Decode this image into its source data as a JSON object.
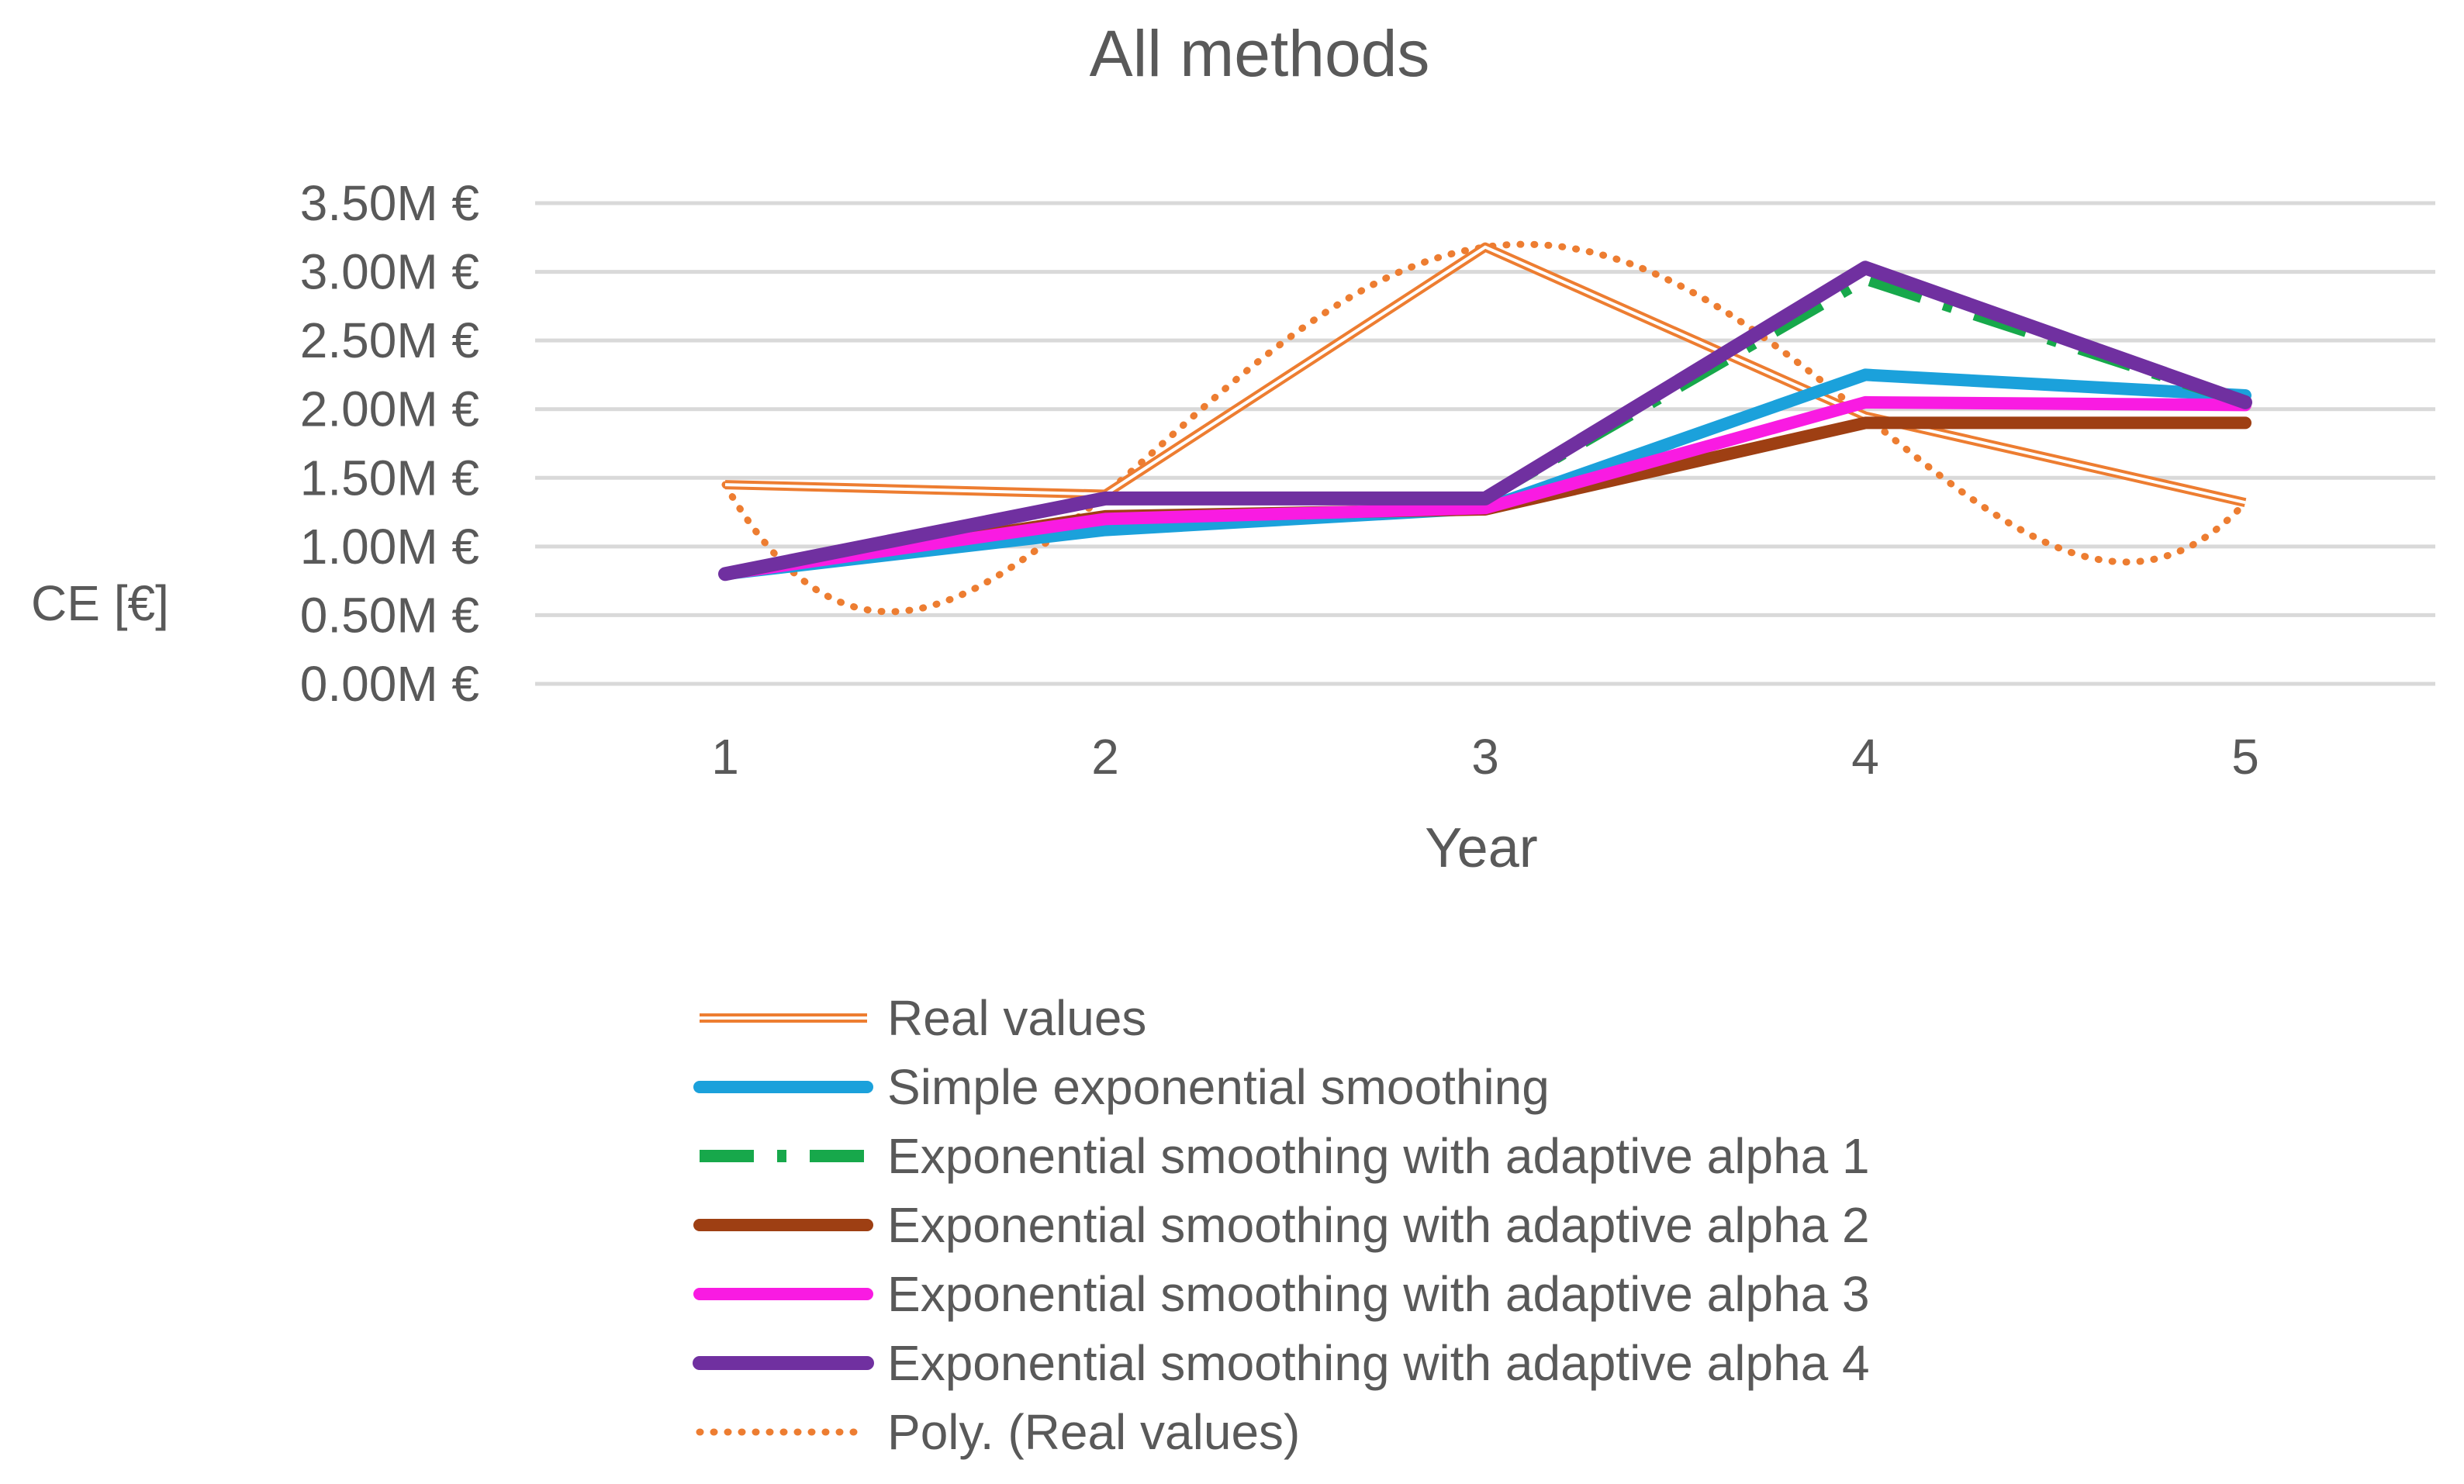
{
  "chart_data": {
    "type": "line",
    "title": "All methods",
    "xlabel": "Year",
    "ylabel": "CE [€]",
    "x": [
      1,
      2,
      3,
      4,
      5
    ],
    "ylim": [
      0,
      3.5
    ],
    "yticks": [
      0,
      0.5,
      1.0,
      1.5,
      2.0,
      2.5,
      3.0,
      3.5
    ],
    "ytick_labels": [
      "0.00M €",
      "0.50M €",
      "1.00M €",
      "1.50M €",
      "2.00M €",
      "2.50M €",
      "3.00M €",
      "3.50M €"
    ],
    "grid": true,
    "legend_position": "bottom",
    "series": [
      {
        "name": "Real values",
        "style": "double",
        "color": "#ED7D31",
        "values": [
          1.45,
          1.38,
          3.18,
          1.95,
          1.32
        ]
      },
      {
        "name": "Simple exponential smoothing",
        "style": "solid",
        "color": "#1BA1DB",
        "values": [
          0.8,
          1.12,
          1.28,
          2.25,
          2.1
        ]
      },
      {
        "name": "Exponential smoothing with adaptive alpha 1",
        "style": "dash",
        "color": "#17A84B",
        "values": [
          0.8,
          1.35,
          1.35,
          2.95,
          2.05
        ]
      },
      {
        "name": "Exponential smoothing with adaptive alpha 2",
        "style": "solid",
        "color": "#9E3F13",
        "values": [
          0.8,
          1.22,
          1.27,
          1.9,
          1.9
        ]
      },
      {
        "name": "Exponential smoothing with adaptive alpha 3",
        "style": "solid",
        "color": "#F91BE2",
        "values": [
          0.8,
          1.2,
          1.28,
          2.05,
          2.03
        ]
      },
      {
        "name": "Exponential smoothing with adaptive alpha 4",
        "style": "solid",
        "color": "#7030A0",
        "values": [
          0.8,
          1.35,
          1.35,
          3.03,
          2.05
        ]
      },
      {
        "name": "Poly. (Real values)",
        "style": "dot",
        "color": "#ED7D31",
        "trend_of": "Real values",
        "values": [
          1.45,
          1.38,
          3.18,
          1.95,
          1.32
        ]
      }
    ]
  }
}
